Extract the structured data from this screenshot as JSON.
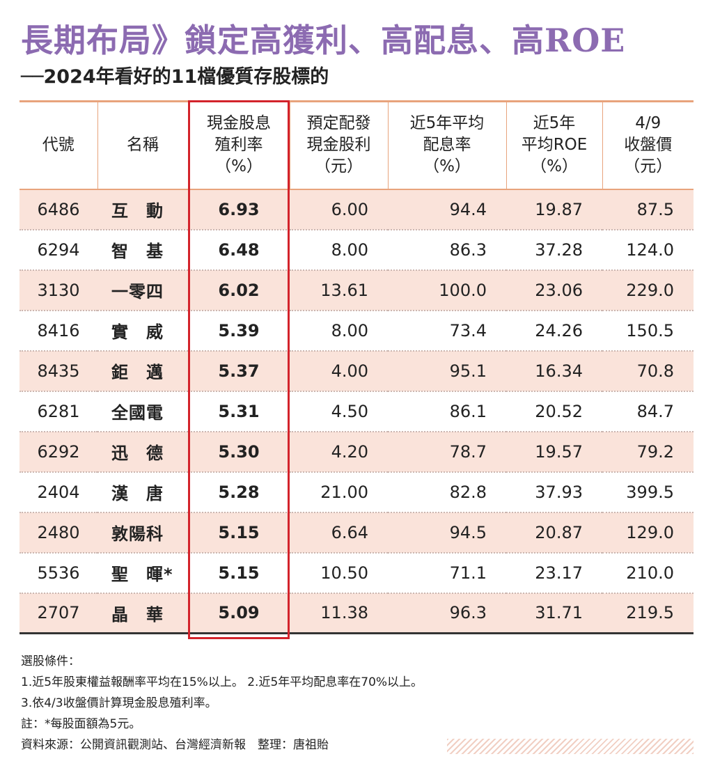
{
  "title": "長期布局》鎖定高獲利、高配息、高ROE",
  "subtitle": "──2024年看好的11檔優質存股標的",
  "colors": {
    "title": "#8c6bb1",
    "row_shade": "#fae3da",
    "rule": "#e8a37c",
    "highlight_box": "#d3232b"
  },
  "table": {
    "headers": [
      {
        "l1": "代號",
        "l2": "",
        "l3": ""
      },
      {
        "l1": "名稱",
        "l2": "",
        "l3": ""
      },
      {
        "l1": "現金股息",
        "l2": "殖利率",
        "l3": "（%）"
      },
      {
        "l1": "預定配發",
        "l2": "現金股利",
        "l3": "（元）"
      },
      {
        "l1": "近5年平均",
        "l2": "配息率",
        "l3": "（%）"
      },
      {
        "l1": "近5年",
        "l2": "平均ROE",
        "l3": "（%）"
      },
      {
        "l1": "4/9",
        "l2": "收盤價",
        "l3": "（元）"
      }
    ],
    "rows": [
      {
        "code": "6486",
        "name": "互　動",
        "yield": "6.93",
        "dividend": "6.00",
        "payout": "94.4",
        "roe": "19.87",
        "price": "87.5"
      },
      {
        "code": "6294",
        "name": "智　基",
        "yield": "6.48",
        "dividend": "8.00",
        "payout": "86.3",
        "roe": "37.28",
        "price": "124.0"
      },
      {
        "code": "3130",
        "name": "一零四",
        "yield": "6.02",
        "dividend": "13.61",
        "payout": "100.0",
        "roe": "23.06",
        "price": "229.0"
      },
      {
        "code": "8416",
        "name": "實　威",
        "yield": "5.39",
        "dividend": "8.00",
        "payout": "73.4",
        "roe": "24.26",
        "price": "150.5"
      },
      {
        "code": "8435",
        "name": "鉅　邁",
        "yield": "5.37",
        "dividend": "4.00",
        "payout": "95.1",
        "roe": "16.34",
        "price": "70.8"
      },
      {
        "code": "6281",
        "name": "全國電",
        "yield": "5.31",
        "dividend": "4.50",
        "payout": "86.1",
        "roe": "20.52",
        "price": "84.7"
      },
      {
        "code": "6292",
        "name": "迅　德",
        "yield": "5.30",
        "dividend": "4.20",
        "payout": "78.7",
        "roe": "19.57",
        "price": "79.2"
      },
      {
        "code": "2404",
        "name": "漢　唐",
        "yield": "5.28",
        "dividend": "21.00",
        "payout": "82.8",
        "roe": "37.93",
        "price": "399.5"
      },
      {
        "code": "2480",
        "name": "敦陽科",
        "yield": "5.15",
        "dividend": "6.64",
        "payout": "94.5",
        "roe": "20.87",
        "price": "129.0"
      },
      {
        "code": "5536",
        "name": "聖　暉*",
        "yield": "5.15",
        "dividend": "10.50",
        "payout": "71.1",
        "roe": "23.17",
        "price": "210.0"
      },
      {
        "code": "2707",
        "name": "晶　華",
        "yield": "5.09",
        "dividend": "11.38",
        "payout": "96.3",
        "roe": "31.71",
        "price": "219.5"
      }
    ]
  },
  "notes": {
    "criteria_label": "選股條件：",
    "line1": "1.近5年股東權益報酬率平均在15%以上。 2.近5年平均配息率在70%以上。",
    "line2": "3.依4/3收盤價計算現金股息殖利率。",
    "note": "註：*每股面額為5元。",
    "source": "資料來源：公開資訊觀測站、台灣經濟新報　整理：唐祖貽"
  }
}
